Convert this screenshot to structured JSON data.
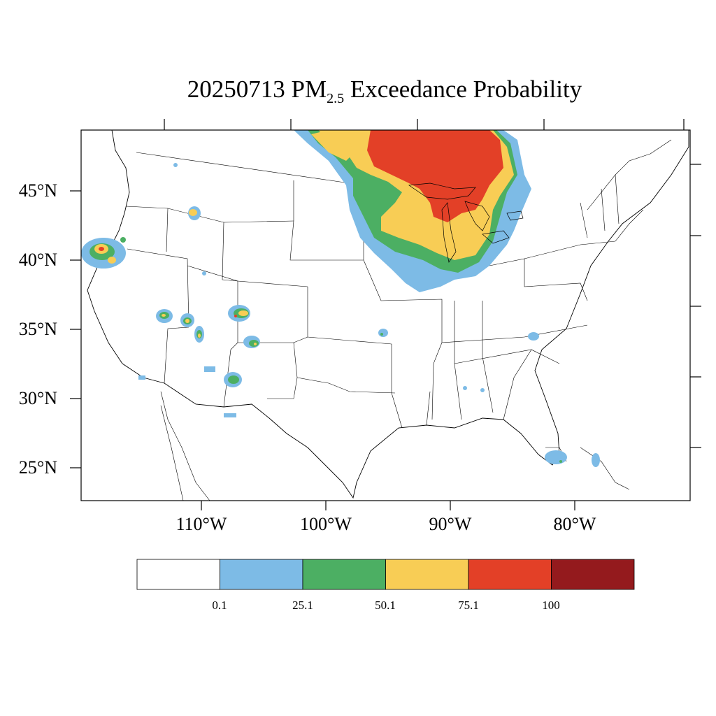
{
  "title": {
    "prefix": "20250713 PM",
    "subscript": "2.5",
    "suffix": " Exceedance Probability"
  },
  "axes": {
    "lat_labels": [
      "45°N",
      "40°N",
      "35°N",
      "30°N",
      "25°N"
    ],
    "lon_labels": [
      "110°W",
      "100°W",
      "90°W",
      "80°W"
    ]
  },
  "colorbar": {
    "colors": [
      "#ffffff",
      "#7dbbe6",
      "#4caf63",
      "#f8cd55",
      "#e34027",
      "#941a1d"
    ],
    "labels": [
      "0.1",
      "25.1",
      "50.1",
      "75.1",
      "100"
    ]
  }
}
